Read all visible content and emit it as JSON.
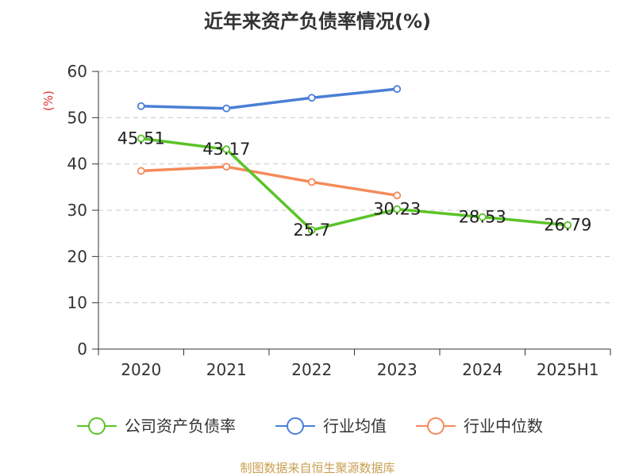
{
  "chart_data": {
    "type": "line",
    "title": "近年来资产负债率情况(%)",
    "ylabel": "(%)",
    "xlabel": "",
    "categories": [
      "2020",
      "2021",
      "2022",
      "2023",
      "2024",
      "2025H1"
    ],
    "ylim": [
      0,
      60
    ],
    "yticks": [
      0,
      10,
      20,
      30,
      40,
      50,
      60
    ],
    "grid": true,
    "legend_position": "bottom",
    "series": [
      {
        "name": "公司资产负债率",
        "color": "#5ac427",
        "values": [
          45.51,
          43.17,
          25.7,
          30.23,
          28.53,
          26.79
        ],
        "labels": [
          "45.51",
          "43.17",
          "25.7",
          "30.23",
          "28.53",
          "26.79"
        ]
      },
      {
        "name": "行业均值",
        "color": "#4a7fd6",
        "values": [
          52.5,
          52.0,
          54.3,
          56.2,
          null,
          null
        ]
      },
      {
        "name": "行业中位数",
        "color": "#f58a5a",
        "values": [
          38.5,
          39.4,
          36.1,
          33.2,
          null,
          null
        ]
      }
    ],
    "source": "制图数据来自恒生聚源数据库"
  }
}
